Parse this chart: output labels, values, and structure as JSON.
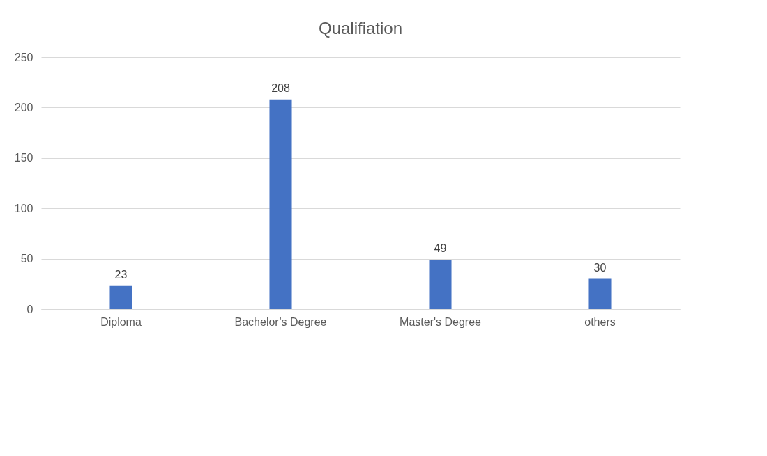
{
  "chart_data": {
    "type": "bar",
    "title": "Qualifiation",
    "categories": [
      "Diploma",
      "Bachelor’s Degree",
      "Master's Degree",
      "others"
    ],
    "values": [
      23,
      208,
      49,
      30
    ],
    "color": "#4472c4",
    "ylim": [
      0,
      250
    ],
    "yticks": [
      0,
      50,
      100,
      150,
      200,
      250
    ],
    "grid": "y",
    "data_labels": true
  }
}
